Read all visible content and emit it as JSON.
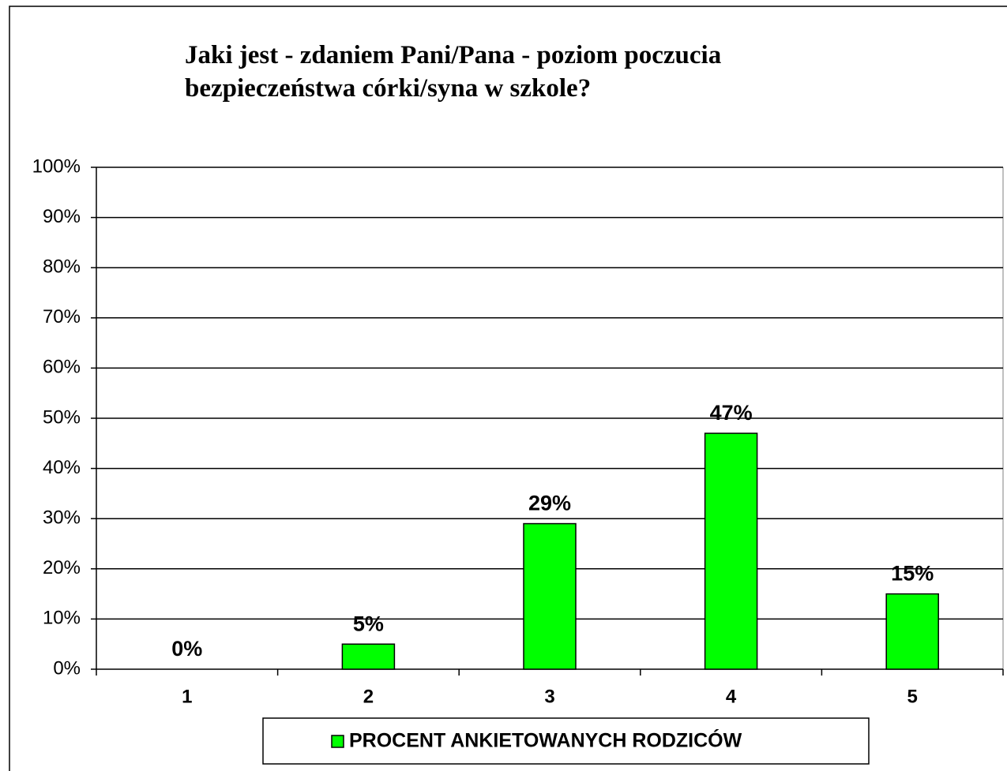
{
  "chart_data": {
    "type": "bar",
    "title": [
      "Jaki jest - zdaniem Pani/Pana - poziom poczucia",
      "bezpieczeństwa córki/syna w szkole?"
    ],
    "categories": [
      "1",
      "2",
      "3",
      "4",
      "5"
    ],
    "series": [
      {
        "name": "PROCENT ANKIETOWANYCH RODZICÓW",
        "color": "#00ff00",
        "values": [
          0,
          5,
          29,
          47,
          15
        ],
        "value_labels": [
          "0%",
          "5%",
          "29%",
          "47%",
          "15%"
        ]
      }
    ],
    "ylim": [
      0,
      100
    ],
    "yticks": [
      {
        "value": 0,
        "label": "0%"
      },
      {
        "value": 10,
        "label": "10%"
      },
      {
        "value": 20,
        "label": "20%"
      },
      {
        "value": 30,
        "label": "30%"
      },
      {
        "value": 40,
        "label": "40%"
      },
      {
        "value": 50,
        "label": "50%"
      },
      {
        "value": 60,
        "label": "60%"
      },
      {
        "value": 70,
        "label": "70%"
      },
      {
        "value": 80,
        "label": "80%"
      },
      {
        "value": 90,
        "label": "90%"
      },
      {
        "value": 100,
        "label": "100%"
      }
    ],
    "grid": true,
    "legend": "bottom"
  }
}
